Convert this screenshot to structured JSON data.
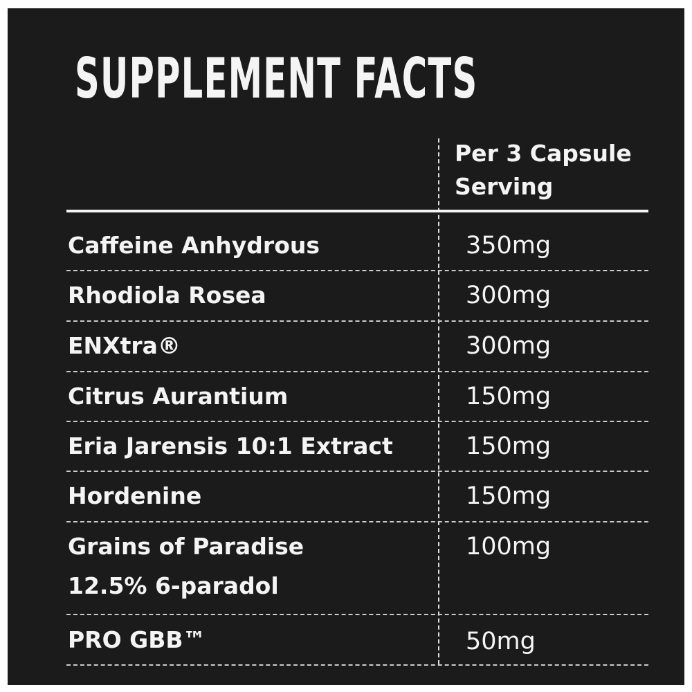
{
  "title": "SUPPLEMENT FACTS",
  "header": {
    "line1": "Per 3 Capsule",
    "line2": "Serving"
  },
  "rows": [
    {
      "name": "Caffeine Anhydrous",
      "name2": "",
      "amount": "350mg"
    },
    {
      "name": "Rhodiola Rosea",
      "name2": "",
      "amount": "300mg"
    },
    {
      "name": "ENXtra®",
      "name2": "",
      "amount": "300mg"
    },
    {
      "name": "Citrus Aurantium",
      "name2": "",
      "amount": "150mg"
    },
    {
      "name": "Eria Jarensis 10:1 Extract",
      "name2": "",
      "amount": "150mg"
    },
    {
      "name": "Hordenine",
      "name2": "",
      "amount": "150mg"
    },
    {
      "name": "Grains of Paradise",
      "name2": "12.5% 6-paradol",
      "amount": "100mg"
    },
    {
      "name": "PRO GBB™",
      "name2": "",
      "amount": "50mg"
    }
  ]
}
